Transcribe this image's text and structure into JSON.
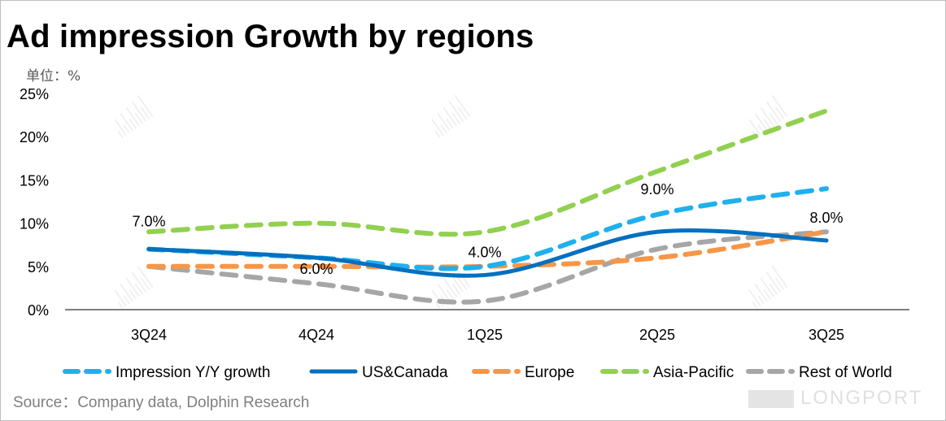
{
  "title": "Ad impression Growth by regions",
  "unit_label": "单位：%",
  "source": "Source：Company data, Dolphin Research",
  "logo_text": "LONGPORT",
  "watermark": "DolphinResearch",
  "chart_data": {
    "type": "line",
    "title": "Ad impression Growth by regions",
    "xlabel": "",
    "ylabel": "单位：%",
    "categories": [
      "3Q24",
      "4Q24",
      "1Q25",
      "2Q25",
      "3Q25"
    ],
    "ylim": [
      0,
      25
    ],
    "yticks": [
      0,
      5,
      10,
      15,
      20,
      25
    ],
    "ytick_labels": [
      "0%",
      "5%",
      "10%",
      "15%",
      "20%",
      "25%"
    ],
    "grid": false,
    "legend_position": "bottom",
    "series": [
      {
        "name": "Impression Y/Y growth",
        "values": [
          7,
          6,
          5,
          11,
          14
        ],
        "color": "#1fb0ee",
        "style": "dashed"
      },
      {
        "name": "US&Canada",
        "values": [
          7,
          6,
          4,
          9,
          8
        ],
        "color": "#0070c0",
        "style": "solid",
        "data_labels": [
          "7.0%",
          "6.0%",
          "4.0%",
          "9.0%",
          "8.0%"
        ]
      },
      {
        "name": "Europe",
        "values": [
          5,
          5,
          5,
          6,
          9
        ],
        "color": "#f79646",
        "style": "dashed"
      },
      {
        "name": "Asia-Pacific",
        "values": [
          9,
          10,
          9,
          16,
          23
        ],
        "color": "#92d050",
        "style": "dashed"
      },
      {
        "name": "Rest of World",
        "values": [
          5,
          3,
          1,
          7,
          9
        ],
        "color": "#a6a6a6",
        "style": "dashed"
      }
    ]
  }
}
